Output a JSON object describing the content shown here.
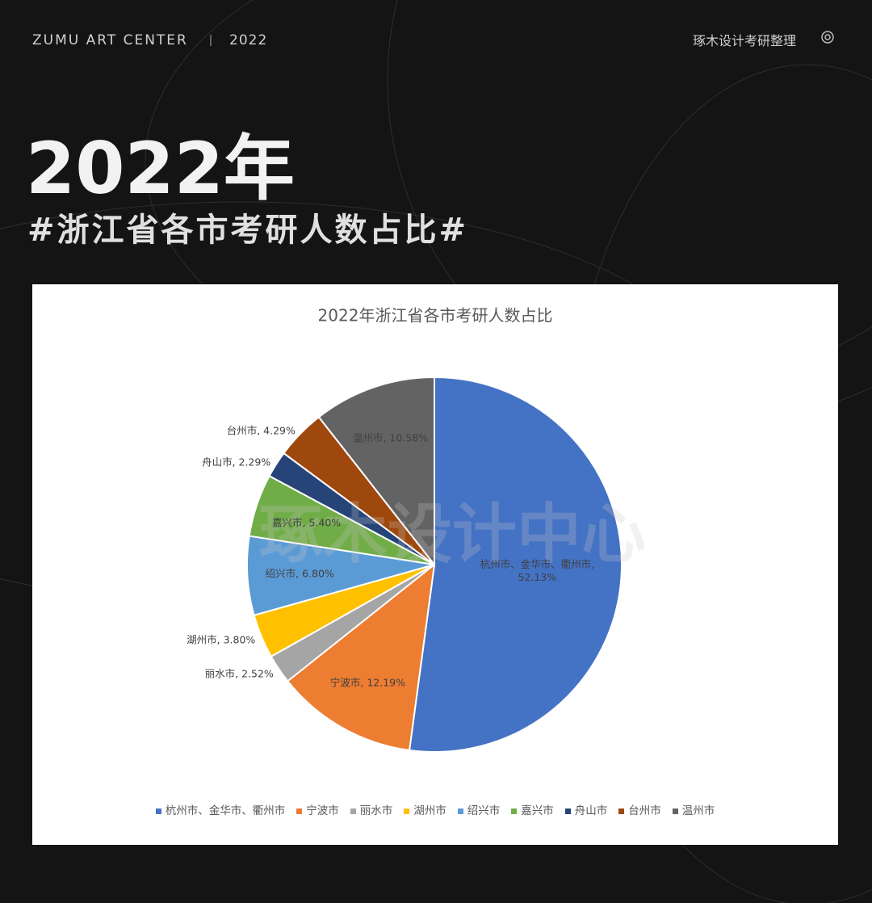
{
  "header": {
    "brand": "ZUMU ART CENTER",
    "year": "2022",
    "credit": "琢木设计考研整理",
    "big_title": "2022年",
    "subtitle": "#浙江省各市考研人数占比#"
  },
  "watermark": "琢木设计中心",
  "chart_data": {
    "type": "pie",
    "title": "2022年浙江省各市考研人数占比",
    "categories": [
      "杭州市、金华市、衢州市",
      "宁波市",
      "丽水市",
      "湖州市",
      "绍兴市",
      "嘉兴市",
      "舟山市",
      "台州市",
      "温州市"
    ],
    "values": [
      52.13,
      12.19,
      2.52,
      3.8,
      6.8,
      5.4,
      2.29,
      4.29,
      10.58
    ],
    "value_labels": [
      "杭州市、金华市、衢州市, 52.13%",
      "宁波市, 12.19%",
      "丽水市, 2.52%",
      "湖州市, 3.80%",
      "绍兴市, 6.80%",
      "嘉兴市, 5.40%",
      "舟山市, 2.29%",
      "台州市, 4.29%",
      "温州市, 10.58%"
    ],
    "colors": [
      "#4472c4",
      "#ed7d31",
      "#a5a5a5",
      "#ffc000",
      "#5b9bd5",
      "#70ad47",
      "#264478",
      "#9e480e",
      "#636363"
    ],
    "legend": "bottom"
  }
}
